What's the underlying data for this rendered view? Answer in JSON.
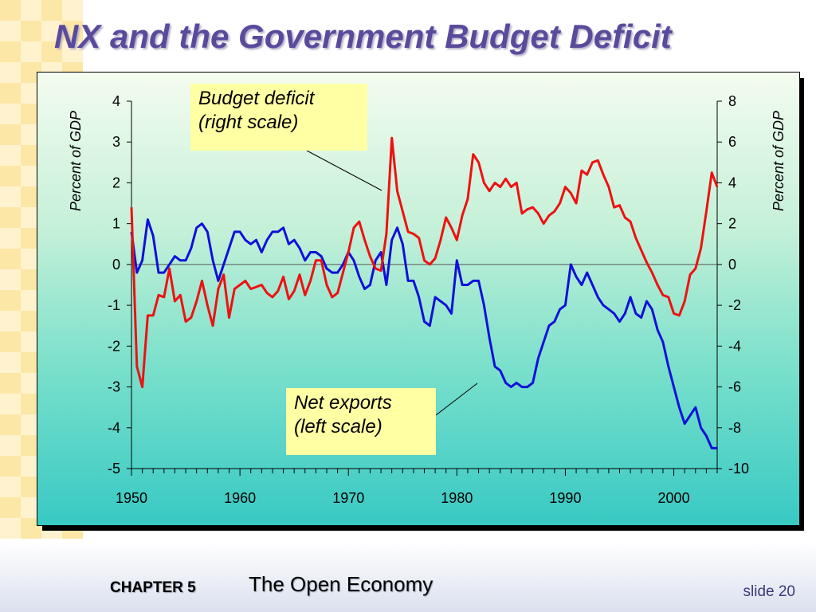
{
  "slide": {
    "title": "NX and the Government Budget Deficit",
    "footer_chapter": "CHAPTER 5",
    "footer_subject": "The Open Economy",
    "slide_number": "slide 20"
  },
  "colors": {
    "nx": "#1010d8",
    "deficit": "#ee1111",
    "title": "#5a4a9c"
  },
  "callouts": {
    "deficit": [
      "Budget deficit",
      "(right scale)"
    ],
    "nx": [
      "Net exports",
      "(left scale)"
    ]
  },
  "chart_data": {
    "type": "line",
    "left_axis_label": "Percent of GDP",
    "right_axis_label": "Percent of GDP",
    "left_ylim": [
      -5,
      4
    ],
    "right_ylim": [
      -10,
      8
    ],
    "left_ticks": [
      "4",
      "3",
      "2",
      "1",
      "0",
      "-1",
      "-2",
      "-3",
      "-4",
      "-5"
    ],
    "right_ticks": [
      "8",
      "6",
      "4",
      "2",
      "0",
      "-2",
      "-4",
      "-6",
      "-8",
      "-10"
    ],
    "xlim": [
      1950,
      2004
    ],
    "x_ticks": [
      "1950",
      "1960",
      "1970",
      "1980",
      "1990",
      "2000"
    ],
    "zero_line_right_scale": 0,
    "series": [
      {
        "name": "Net exports",
        "scale": "left",
        "color": "#1010d8",
        "x": [
          1950,
          1950.5,
          1951,
          1951.5,
          1952,
          1952.5,
          1953,
          1953.5,
          1954,
          1954.5,
          1955,
          1955.5,
          1956,
          1956.5,
          1957,
          1957.5,
          1958,
          1958.5,
          1959,
          1959.5,
          1960,
          1960.5,
          1961,
          1961.5,
          1962,
          1962.5,
          1963,
          1963.5,
          1964,
          1964.5,
          1965,
          1965.5,
          1966,
          1966.5,
          1967,
          1967.5,
          1968,
          1968.5,
          1969,
          1969.5,
          1970,
          1970.5,
          1971,
          1971.5,
          1972,
          1972.5,
          1973,
          1973.5,
          1974,
          1974.5,
          1975,
          1975.5,
          1976,
          1976.5,
          1977,
          1977.5,
          1978,
          1978.5,
          1979,
          1979.5,
          1980,
          1980.5,
          1981,
          1981.5,
          1982,
          1982.5,
          1983,
          1983.5,
          1984,
          1984.5,
          1985,
          1985.5,
          1986,
          1986.5,
          1987,
          1987.5,
          1988,
          1988.5,
          1989,
          1989.5,
          1990,
          1990.5,
          1991,
          1991.5,
          1992,
          1992.5,
          1993,
          1993.5,
          1994,
          1994.5,
          1995,
          1995.5,
          1996,
          1996.5,
          1997,
          1997.5,
          1998,
          1998.5,
          1999,
          1999.5,
          2000,
          2000.5,
          2001,
          2001.5,
          2002,
          2002.5,
          2003,
          2003.5,
          2004
        ],
        "values": [
          0.8,
          -0.2,
          0.1,
          1.1,
          0.7,
          -0.2,
          -0.2,
          0.0,
          0.2,
          0.1,
          0.1,
          0.4,
          0.9,
          1.0,
          0.8,
          0.1,
          -0.4,
          0.0,
          0.4,
          0.8,
          0.8,
          0.6,
          0.5,
          0.6,
          0.3,
          0.6,
          0.8,
          0.8,
          0.9,
          0.5,
          0.6,
          0.4,
          0.1,
          0.3,
          0.3,
          0.2,
          -0.1,
          -0.2,
          -0.2,
          0.0,
          0.3,
          0.1,
          -0.3,
          -0.6,
          -0.5,
          0.1,
          0.3,
          -0.5,
          0.6,
          0.9,
          0.5,
          -0.4,
          -0.4,
          -0.8,
          -1.4,
          -1.5,
          -0.8,
          -0.9,
          -1.0,
          -1.2,
          0.1,
          -0.5,
          -0.5,
          -0.4,
          -0.4,
          -1.0,
          -1.8,
          -2.5,
          -2.6,
          -2.9,
          -3.0,
          -2.9,
          -3.0,
          -3.0,
          -2.9,
          -2.3,
          -1.9,
          -1.5,
          -1.4,
          -1.1,
          -1.0,
          0.0,
          -0.3,
          -0.5,
          -0.2,
          -0.5,
          -0.8,
          -1.0,
          -1.1,
          -1.2,
          -1.4,
          -1.2,
          -0.8,
          -1.2,
          -1.3,
          -0.9,
          -1.1,
          -1.6,
          -1.9,
          -2.5,
          -3.0,
          -3.5,
          -3.9,
          -3.7,
          -3.5,
          -4.0,
          -4.2,
          -4.5,
          -4.5
        ]
      },
      {
        "name": "Budget deficit",
        "scale": "right",
        "color": "#ee1111",
        "x": [
          1950,
          1950.5,
          1951,
          1951.5,
          1952,
          1952.5,
          1953,
          1953.5,
          1954,
          1954.5,
          1955,
          1955.5,
          1956,
          1956.5,
          1957,
          1957.5,
          1958,
          1958.5,
          1959,
          1959.5,
          1960,
          1960.5,
          1961,
          1961.5,
          1962,
          1962.5,
          1963,
          1963.5,
          1964,
          1964.5,
          1965,
          1965.5,
          1966,
          1966.5,
          1967,
          1967.5,
          1968,
          1968.5,
          1969,
          1969.5,
          1970,
          1970.5,
          1971,
          1971.5,
          1972,
          1972.5,
          1973,
          1973.5,
          1974,
          1974.5,
          1975,
          1975.5,
          1976,
          1976.5,
          1977,
          1977.5,
          1978,
          1978.5,
          1979,
          1979.5,
          1980,
          1980.5,
          1981,
          1981.5,
          1982,
          1982.5,
          1983,
          1983.5,
          1984,
          1984.5,
          1985,
          1985.5,
          1986,
          1986.5,
          1987,
          1987.5,
          1988,
          1988.5,
          1989,
          1989.5,
          1990,
          1990.5,
          1991,
          1991.5,
          1992,
          1992.5,
          1993,
          1993.5,
          1994,
          1994.5,
          1995,
          1995.5,
          1996,
          1996.5,
          1997,
          1997.5,
          1998,
          1998.5,
          1999,
          1999.5,
          2000,
          2000.5,
          2001,
          2001.5,
          2002,
          2002.5,
          2003,
          2003.5,
          2004
        ],
        "values": [
          2.8,
          -5.0,
          -6.0,
          -2.5,
          -2.5,
          -1.5,
          -1.6,
          -0.2,
          -1.8,
          -1.5,
          -2.8,
          -2.6,
          -1.8,
          -0.8,
          -2.0,
          -3.0,
          -1.2,
          -0.5,
          -2.6,
          -1.2,
          -1.0,
          -0.8,
          -1.2,
          -1.1,
          -1.0,
          -1.4,
          -1.6,
          -1.3,
          -0.6,
          -1.7,
          -1.3,
          -0.5,
          -1.5,
          -0.8,
          0.2,
          0.2,
          -1.0,
          -1.6,
          -1.4,
          -0.4,
          0.6,
          1.8,
          2.1,
          1.2,
          0.4,
          -0.2,
          -0.3,
          1.5,
          6.2,
          3.6,
          2.6,
          1.6,
          1.5,
          1.3,
          0.2,
          0.0,
          0.3,
          1.2,
          2.3,
          1.8,
          1.2,
          2.4,
          3.2,
          5.4,
          5.0,
          4.0,
          3.6,
          4.0,
          3.8,
          4.2,
          3.8,
          4.0,
          2.5,
          2.7,
          2.8,
          2.5,
          2.0,
          2.4,
          2.6,
          3.0,
          3.8,
          3.5,
          3.0,
          4.6,
          4.4,
          5.0,
          5.1,
          4.4,
          3.8,
          2.8,
          2.9,
          2.3,
          2.1,
          1.3,
          0.7,
          0.1,
          -0.4,
          -1.0,
          -1.5,
          -1.6,
          -2.4,
          -2.5,
          -1.8,
          -0.5,
          -0.2,
          0.8,
          2.6,
          4.5,
          3.8
        ]
      }
    ]
  }
}
